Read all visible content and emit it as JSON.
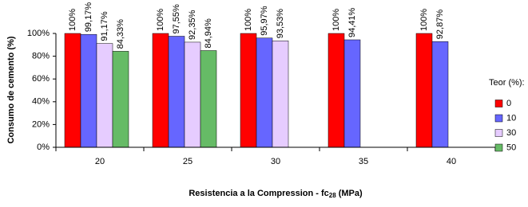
{
  "chart_data": {
    "type": "bar",
    "ylabel": "Consumo de cemento  (%)",
    "xlabel": {
      "text": "Resistencia a la Compression - fc",
      "subscript": "28",
      "suffix": "(MPa)"
    },
    "legend_title": "Teor (%):",
    "legend": "right",
    "categories": [
      "20",
      "25",
      "30",
      "35",
      "40"
    ],
    "series": [
      {
        "name": "0",
        "color": "#ff0000",
        "values": [
          100,
          100,
          100,
          100,
          100
        ],
        "value_labels": [
          "100%",
          "100%",
          "100%",
          "100%",
          "100%"
        ]
      },
      {
        "name": "10",
        "color": "#6666ff",
        "values": [
          99.17,
          97.55,
          95.97,
          94.41,
          92.87
        ],
        "value_labels": [
          "99,17%",
          "97,55%",
          "95,97%",
          "94,41%",
          "92,87%"
        ]
      },
      {
        "name": "30",
        "color": "#e6ccff",
        "values": [
          91.17,
          92.35,
          93.53,
          null,
          null
        ],
        "value_labels": [
          "91,17%",
          "92,35%",
          "93,53%",
          null,
          null
        ]
      },
      {
        "name": "50",
        "color": "#66bb66",
        "values": [
          84.33,
          84.94,
          null,
          null,
          null
        ],
        "value_labels": [
          "84,33%",
          "84,94%",
          null,
          null,
          null
        ]
      }
    ],
    "ylim": [
      0,
      100
    ],
    "yticks": [
      {
        "value": 0,
        "label": "0%"
      },
      {
        "value": 20,
        "label": "20%"
      },
      {
        "value": 40,
        "label": "40%"
      },
      {
        "value": 60,
        "label": "60%"
      },
      {
        "value": 80,
        "label": "80%"
      },
      {
        "value": 100,
        "label": "100%"
      }
    ]
  }
}
